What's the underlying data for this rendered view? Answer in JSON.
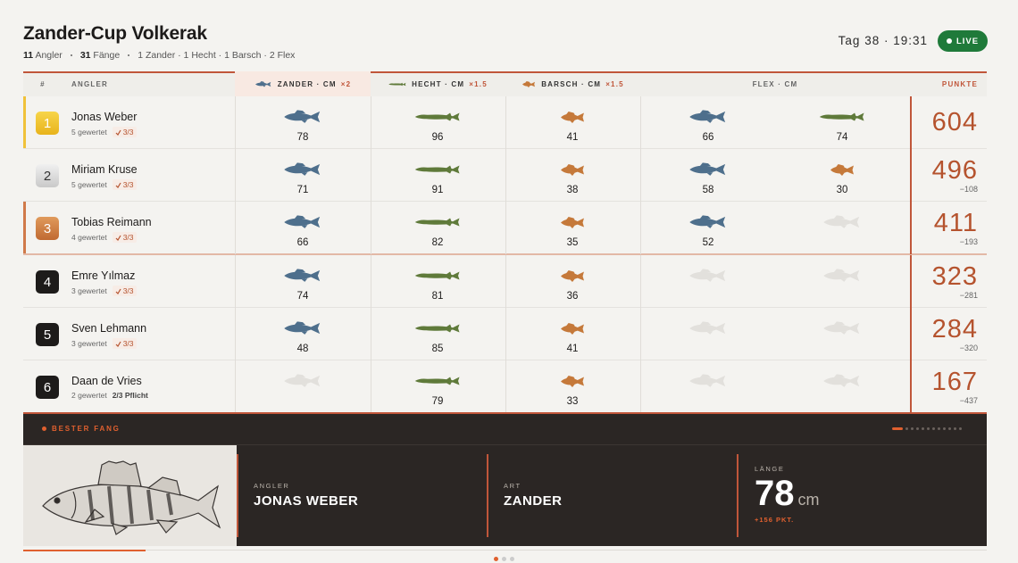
{
  "header": {
    "title": "Zander-Cup Volkerak",
    "stats": [
      {
        "count": "11",
        "label": "Angler"
      },
      {
        "count": "31",
        "label": "Fänge"
      }
    ],
    "breakdown": "1 Zander · 1 Hecht · 1 Barsch · 2 Flex",
    "clock": "Tag 38 · 19:31",
    "live": "LIVE"
  },
  "table": {
    "columns": {
      "rank": "#",
      "angler": "ANGLER",
      "zander": {
        "label": "ZANDER · CM",
        "factor": "×2"
      },
      "hecht": {
        "label": "HECHT · CM",
        "factor": "×1.5"
      },
      "barsch": {
        "label": "BARSCH · CM",
        "factor": "×1.5"
      },
      "flex": "FLEX · CM",
      "points": "PUNKTE"
    },
    "rows": [
      {
        "rank": "1",
        "name": "Jonas Weber",
        "counted": "5 gewertet",
        "rule": "3/3",
        "rule_met": true,
        "catches": [
          "78",
          "96",
          "41",
          "66",
          "74"
        ],
        "flex_species": [
          "zander",
          "hecht"
        ],
        "points": "604"
      },
      {
        "rank": "2",
        "name": "Miriam Kruse",
        "counted": "5 gewertet",
        "rule": "3/3",
        "rule_met": true,
        "catches": [
          "71",
          "91",
          "38",
          "58",
          "30"
        ],
        "flex_species": [
          "zander",
          "barsch"
        ],
        "points": "496",
        "diff": "−108"
      },
      {
        "rank": "3",
        "name": "Tobias Reimann",
        "counted": "4 gewertet",
        "rule": "3/3",
        "rule_met": true,
        "catches": [
          "66",
          "82",
          "35",
          "52",
          null
        ],
        "flex_species": [
          "zander",
          null
        ],
        "points": "411",
        "diff": "−193"
      },
      {
        "rank": "4",
        "name": "Emre Yılmaz",
        "counted": "3 gewertet",
        "rule": "3/3",
        "rule_met": true,
        "catches": [
          "74",
          "81",
          "36",
          null,
          null
        ],
        "flex_species": [
          null,
          null
        ],
        "points": "323",
        "diff": "−281"
      },
      {
        "rank": "5",
        "name": "Sven Lehmann",
        "counted": "3 gewertet",
        "rule": "3/3",
        "rule_met": true,
        "catches": [
          "48",
          "85",
          "41",
          null,
          null
        ],
        "flex_species": [
          null,
          null
        ],
        "points": "284",
        "diff": "−320"
      },
      {
        "rank": "6",
        "name": "Daan de Vries",
        "counted": "2 gewertet",
        "rule": "2/3 Pflicht",
        "rule_met": false,
        "catches": [
          null,
          "79",
          "33",
          null,
          null
        ],
        "flex_species": [
          null,
          null
        ],
        "points": "167",
        "diff": "−437"
      }
    ]
  },
  "best_catch": {
    "title": "BESTER FANG",
    "angler_label": "ANGLER",
    "angler": "JONAS WEBER",
    "species_label": "ART",
    "species": "ZANDER",
    "length_label": "LÄNGE",
    "length": "78",
    "unit": "cm",
    "bonus": "+156 PKT."
  }
}
